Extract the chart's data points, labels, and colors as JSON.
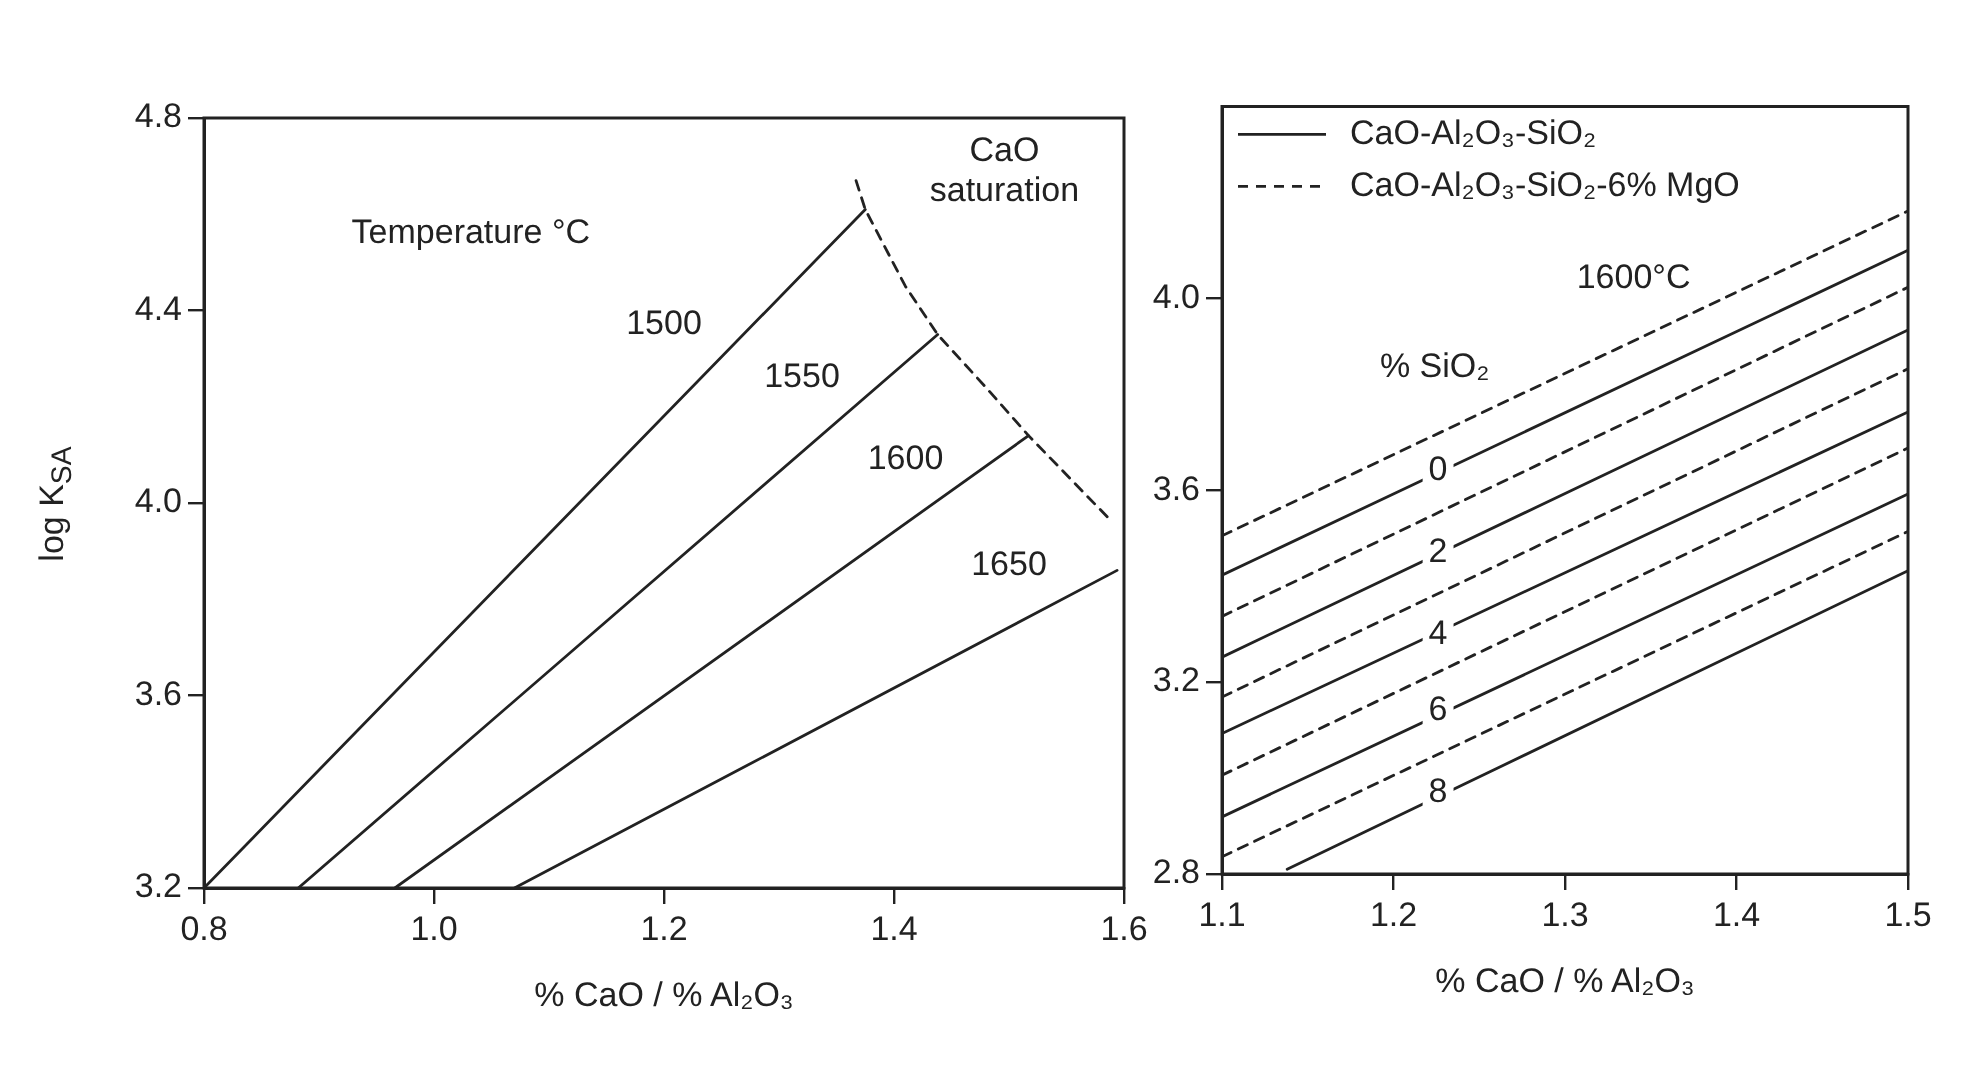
{
  "chart_data": [
    {
      "type": "line",
      "ylabel": "log K$_{SA}$",
      "xlabel": "% CaO / % Al₂O₃",
      "xlim": [
        0.8,
        1.6
      ],
      "xticks": [
        0.8,
        {
          "value": 1,
          "label": "1.0"
        },
        1.2,
        1.4,
        1.6
      ],
      "ylim": [
        3.2,
        4.8
      ],
      "yticks": [
        3.2,
        3.6,
        {
          "value": 4,
          "label": "4.0"
        },
        4.4,
        4.8
      ],
      "grid": false,
      "marker": "none",
      "series": [
        {
          "color": "#222222",
          "line_style": "solid",
          "x": [
            0.8,
            1.375
          ],
          "values": [
            3.2,
            4.61
          ]
        },
        {
          "color": "#222222",
          "line_style": "solid",
          "x": [
            0.882,
            1.438
          ],
          "values": [
            3.2,
            4.35
          ]
        },
        {
          "color": "#222222",
          "line_style": "solid",
          "x": [
            0.966,
            1.517
          ],
          "values": [
            3.2,
            4.14
          ]
        },
        {
          "color": "#222222",
          "line_style": "solid",
          "x": [
            1.07,
            1.594
          ],
          "values": [
            3.2,
            3.86
          ]
        },
        {
          "color": "#222222",
          "line_style": "dashed",
          "x": [
            1.367,
            1.375,
            1.41,
            1.438,
            1.48,
            1.517,
            1.59
          ],
          "values": [
            4.67,
            4.61,
            4.45,
            4.35,
            4.24,
            4.14,
            3.96
          ]
        }
      ],
      "annotations": [
        "Temperature °C",
        {
          "text": "1500",
          "x": 1.2,
          "y": 4.37
        },
        {
          "text": "1550",
          "x": 1.32,
          "y": 4.26
        },
        {
          "text": "1600",
          "x": 1.41,
          "y": 4.09
        },
        {
          "text": "1650",
          "x": 1.5,
          "y": 3.87
        },
        "CaO saturation"
      ]
    },
    {
      "type": "line",
      "xlabel": "% CaO / % Al₂O₃",
      "xlim": [
        1.1,
        1.5
      ],
      "xticks": [
        1.1,
        1.2,
        1.3,
        1.4,
        1.5
      ],
      "ylim": [
        2.8,
        4.4
      ],
      "yticks": [
        2.8,
        3.2,
        3.6,
        {
          "value": 4,
          "label": "4.0"
        }
      ],
      "grid": false,
      "marker": "none",
      "legend": "top left",
      "series": [
        {
          "name": "CaO-Al₂O₃-SiO₂",
          "color": "#222222",
          "line_style": "solid",
          "x": [
            1.1,
            1.5
          ],
          "values": [
            3.423,
            4.1
          ]
        },
        {
          "name": "CaO-Al₂O₃-SiO₂-6% MgO",
          "color": "#222222",
          "line_style": "dashed",
          "x": [
            1.1,
            1.5
          ],
          "values": [
            3.505,
            4.182
          ]
        },
        {
          "color": "#222222",
          "line_style": "solid",
          "x": [
            1.1,
            1.5
          ],
          "values": [
            3.252,
            3.934
          ]
        },
        {
          "color": "#222222",
          "line_style": "dashed",
          "x": [
            1.1,
            1.5
          ],
          "values": [
            3.337,
            4.023
          ]
        },
        {
          "color": "#222222",
          "line_style": "solid",
          "x": [
            1.1,
            1.5
          ],
          "values": [
            3.093,
            3.763
          ]
        },
        {
          "color": "#222222",
          "line_style": "dashed",
          "x": [
            1.1,
            1.5
          ],
          "values": [
            3.169,
            3.853
          ]
        },
        {
          "color": "#222222",
          "line_style": "solid",
          "x": [
            1.1,
            1.5
          ],
          "values": [
            2.919,
            3.592
          ]
        },
        {
          "color": "#222222",
          "line_style": "dashed",
          "x": [
            1.1,
            1.5
          ],
          "values": [
            3.006,
            3.688
          ]
        },
        {
          "color": "#222222",
          "line_style": "solid",
          "x": [
            1.138,
            1.5
          ],
          "values": [
            2.81,
            3.432
          ]
        },
        {
          "color": "#222222",
          "line_style": "dashed",
          "x": [
            1.1,
            1.5
          ],
          "values": [
            2.836,
            3.514
          ]
        }
      ],
      "annotations": [
        "1600°C",
        "% SiO₂",
        {
          "text": "0",
          "x": 1.226,
          "y": 3.64
        },
        {
          "text": "2",
          "x": 1.226,
          "y": 3.47
        },
        {
          "text": "4",
          "x": 1.226,
          "y": 3.3
        },
        {
          "text": "6",
          "x": 1.226,
          "y": 3.14
        },
        {
          "text": "8",
          "x": 1.226,
          "y": 2.97
        }
      ]
    }
  ]
}
